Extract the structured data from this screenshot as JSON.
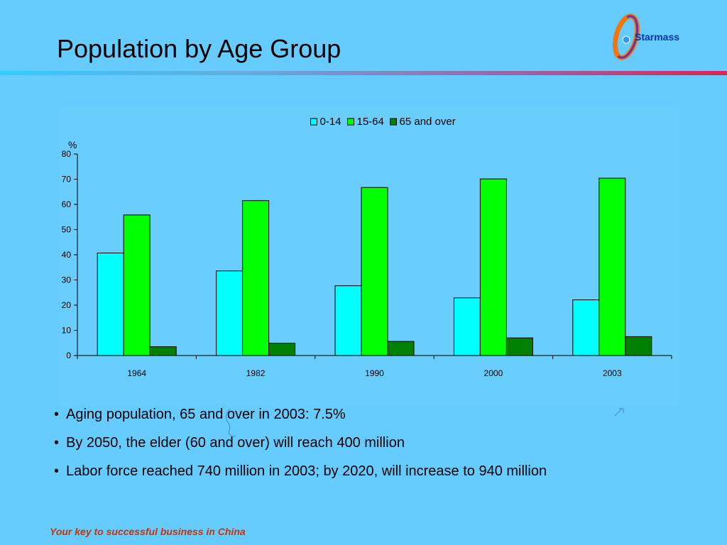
{
  "slide": {
    "title": "Population by Age Group",
    "logo_text": "Starmass",
    "footer": "Your key to successful business in China",
    "bullets": [
      "Aging population, 65 and over in 2003: 7.5%",
      "By 2050, the elder (60 and over) will reach 400 million",
      "Labor force reached 740 million in 2003; by 2020, will increase to 940 million"
    ]
  },
  "chart_data": {
    "type": "bar",
    "title": "",
    "xlabel": "",
    "ylabel": "%",
    "ylim": [
      0,
      80
    ],
    "yticks": [
      0,
      10,
      20,
      30,
      40,
      50,
      60,
      70,
      80
    ],
    "grid": false,
    "legend_position": "top",
    "categories": [
      "1964",
      "1982",
      "1990",
      "2000",
      "2003"
    ],
    "series": [
      {
        "name": "0-14",
        "color": "#00ffff",
        "values": [
          40.7,
          33.6,
          27.7,
          22.9,
          22.1
        ]
      },
      {
        "name": "15-64",
        "color": "#00ff00",
        "values": [
          55.8,
          61.5,
          66.7,
          70.1,
          70.4
        ]
      },
      {
        "name": "65 and over",
        "color": "#008000",
        "values": [
          3.5,
          4.9,
          5.6,
          7.0,
          7.5
        ]
      }
    ]
  }
}
